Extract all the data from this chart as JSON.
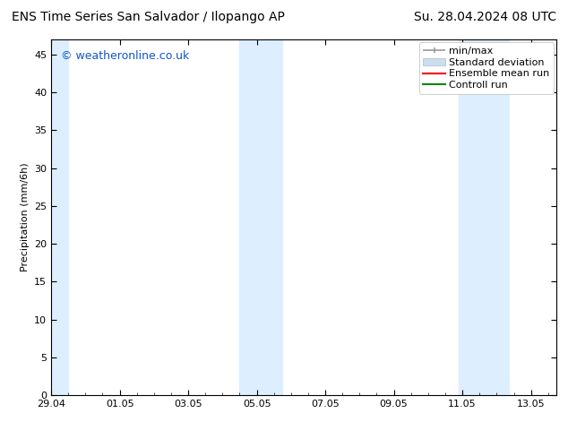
{
  "title_left": "ENS Time Series San Salvador / Ilopango AP",
  "title_right": "Su. 28.04.2024 08 UTC",
  "ylabel": "Precipitation (mm/6h)",
  "background_color": "#ffffff",
  "plot_bg_color": "#ffffff",
  "shaded_band_color": "#ddeeff",
  "ylim": [
    0,
    47
  ],
  "yticks": [
    0,
    5,
    10,
    15,
    20,
    25,
    30,
    35,
    40,
    45
  ],
  "watermark": "© weatheronline.co.uk",
  "watermark_color": "#1155cc",
  "x_tick_labels": [
    "29.04",
    "01.05",
    "03.05",
    "05.05",
    "07.05",
    "09.05",
    "11.05",
    "13.05"
  ],
  "x_tick_positions": [
    0.0,
    2.0,
    4.0,
    6.0,
    8.0,
    10.0,
    12.0,
    14.0
  ],
  "x_min": 0.0,
  "x_max": 14.75,
  "shaded_regions": [
    {
      "x_start": -0.1,
      "x_end": 0.5
    },
    {
      "x_start": 5.5,
      "x_end": 6.75
    },
    {
      "x_start": 11.9,
      "x_end": 13.35
    }
  ],
  "minmax_color": "#999999",
  "std_dev_color": "#ccdded",
  "ensemble_color": "#ff0000",
  "control_color": "#008800",
  "font_size_title": 10,
  "font_size_axis": 8,
  "font_size_watermark": 9,
  "font_size_legend": 8
}
